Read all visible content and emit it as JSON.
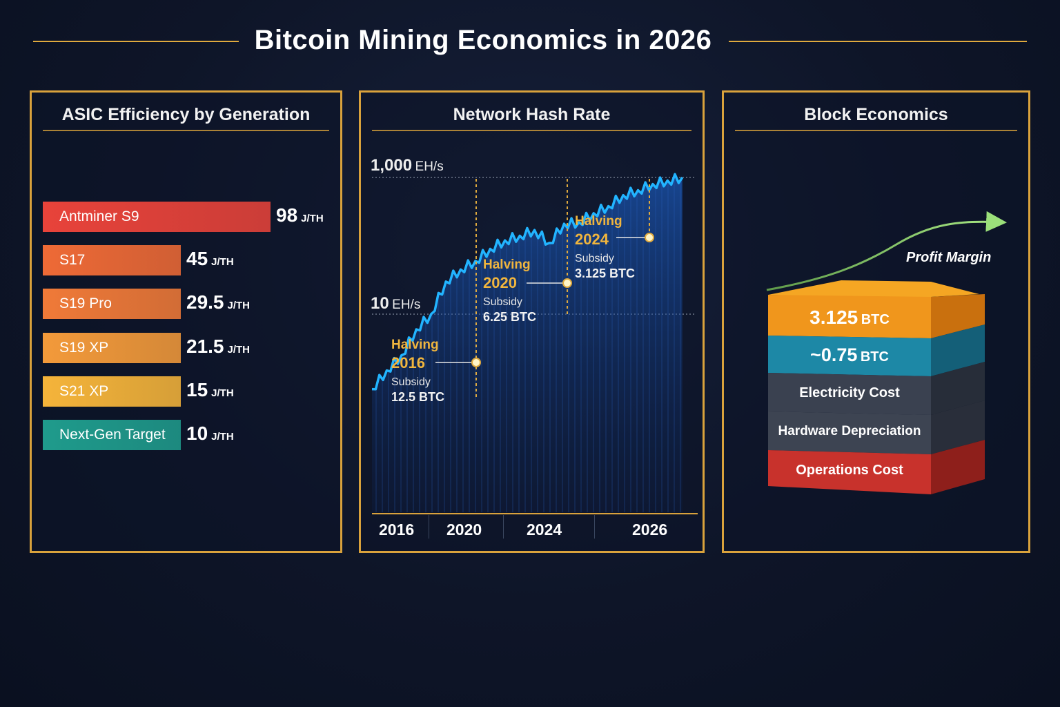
{
  "title": "Bitcoin Mining Economics in 2026",
  "colors": {
    "accent": "#d9a23c",
    "background": "#0e1528",
    "line": "#22b4ff"
  },
  "panels": {
    "asic": {
      "title": "ASIC Efficiency by Generation",
      "unit": "J/TH"
    },
    "hashrate": {
      "title": "Network Hash Rate",
      "y_top": {
        "value": "1,000",
        "unit": "EH/s"
      },
      "y_mid": {
        "value": "10",
        "unit": "EH/s"
      },
      "halvings": [
        {
          "label": "Halving",
          "year": "2016",
          "subsidy_label": "Subsidy",
          "subsidy": "12.5 BTC"
        },
        {
          "label": "Halving",
          "year": "2020",
          "subsidy_label": "Subsidy",
          "subsidy": "6.25 BTC"
        },
        {
          "label": "Halving",
          "year": "2024",
          "subsidy_label": "Subsidy",
          "subsidy": "3.125 BTC"
        }
      ],
      "x_ticks": [
        "2016",
        "2020",
        "2024",
        "2026"
      ]
    },
    "block": {
      "title": "Block Economics",
      "profit_label": "Profit Margin",
      "layers": [
        {
          "value": "3.125",
          "unit": "BTC",
          "color": "#f0961c"
        },
        {
          "value": "~0.75",
          "unit": "BTC",
          "color": "#1d88a6"
        },
        {
          "value": "Electricity Cost",
          "unit": "",
          "color": "#3a4150"
        },
        {
          "value": "Hardware Depreciation",
          "unit": "",
          "color": "#3d4452"
        },
        {
          "value": "Operations Cost",
          "unit": "",
          "color": "#c8322c"
        }
      ]
    }
  },
  "chart_data": [
    {
      "type": "bar",
      "title": "ASIC Efficiency by Generation",
      "categories": [
        "Antminer S9",
        "S17",
        "S19 Pro",
        "S19 XP",
        "S21 XP",
        "Next-Gen Target"
      ],
      "values": [
        98,
        45,
        29.5,
        21.5,
        15,
        10
      ],
      "unit": "J/TH",
      "colors": [
        "#e8433a",
        "#ee6a36",
        "#f07a38",
        "#f39a3a",
        "#f5b43a",
        "#1f9b8c"
      ]
    },
    {
      "type": "line",
      "title": "Network Hash Rate",
      "y_scale": "log",
      "ylim": [
        1,
        1000
      ],
      "ylabel": "EH/s",
      "x": [
        2015.5,
        2016,
        2016.5,
        2017,
        2017.5,
        2018,
        2018.5,
        2019,
        2019.5,
        2020,
        2020.5,
        2021,
        2021.5,
        2022,
        2022.5,
        2023,
        2023.5,
        2024,
        2024.5,
        2025,
        2025.5,
        2026
      ],
      "y": [
        0.8,
        1.5,
        2.5,
        6,
        10,
        30,
        45,
        60,
        90,
        120,
        140,
        170,
        110,
        210,
        220,
        300,
        380,
        550,
        650,
        800,
        900,
        1000
      ],
      "annotations": [
        {
          "x": "2016",
          "text": "Halving 2016 Subsidy 12.5 BTC"
        },
        {
          "x": "2020",
          "text": "Halving 2020 Subsidy 6.25 BTC"
        },
        {
          "x": "2024",
          "text": "Halving 2024 Subsidy 3.125 BTC"
        }
      ]
    }
  ]
}
